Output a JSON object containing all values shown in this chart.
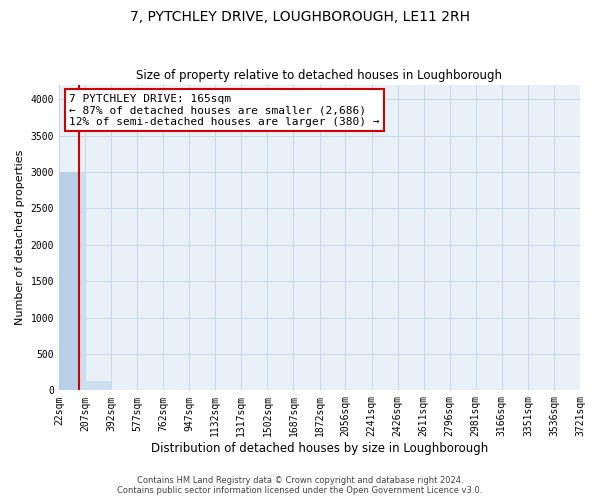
{
  "title": "7, PYTCHLEY DRIVE, LOUGHBOROUGH, LE11 2RH",
  "subtitle": "Size of property relative to detached houses in Loughborough",
  "xlabel": "Distribution of detached houses by size in Loughborough",
  "ylabel": "Number of detached properties",
  "bin_edges": [
    22,
    207,
    392,
    577,
    762,
    947,
    1132,
    1317,
    1502,
    1687,
    1872,
    2056,
    2241,
    2426,
    2611,
    2796,
    2981,
    3166,
    3351,
    3536,
    3721
  ],
  "bar_heights": [
    3000,
    130,
    0,
    0,
    0,
    0,
    0,
    0,
    0,
    0,
    0,
    0,
    0,
    0,
    0,
    0,
    0,
    0,
    0,
    0
  ],
  "bar_color": "#ccdff0",
  "bar_color_highlight": "#b8d0e8",
  "grid_color": "#c8d8e8",
  "bg_color": "#e8f0f8",
  "property_value": 165,
  "annotation_line1": "7 PYTCHLEY DRIVE: 165sqm",
  "annotation_line2": "← 87% of detached houses are smaller (2,686)",
  "annotation_line3": "12% of semi-detached houses are larger (380) →",
  "vline_color": "#cc0000",
  "annotation_box_edgecolor": "#cc0000",
  "ylim": [
    0,
    4200
  ],
  "yticks": [
    0,
    500,
    1000,
    1500,
    2000,
    2500,
    3000,
    3500,
    4000
  ],
  "footnote1": "Contains HM Land Registry data © Crown copyright and database right 2024.",
  "footnote2": "Contains public sector information licensed under the Open Government Licence v3.0.",
  "title_fontsize": 10,
  "subtitle_fontsize": 8.5,
  "tick_fontsize": 7,
  "ylabel_fontsize": 8,
  "xlabel_fontsize": 8.5,
  "annotation_fontsize": 8,
  "footnote_fontsize": 6
}
